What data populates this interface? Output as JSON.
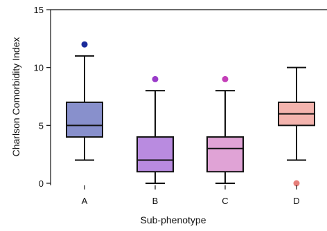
{
  "chart_data": {
    "type": "box",
    "xlabel": "Sub-phenotype",
    "ylabel": "Charlson Comorbidity Index",
    "ylim": [
      0,
      15
    ],
    "y_ticks": [
      0,
      5,
      10,
      15
    ],
    "grid": false,
    "categories": [
      "A",
      "B",
      "C",
      "D"
    ],
    "boxes": [
      {
        "category": "A",
        "whisker_low": 2,
        "q1": 4,
        "median": 5,
        "q3": 7,
        "whisker_high": 11,
        "outliers": [
          12
        ],
        "color": "#8890cc",
        "outlier_color": "#1a2a9a"
      },
      {
        "category": "B",
        "whisker_low": 0,
        "q1": 1,
        "median": 2,
        "q3": 4,
        "whisker_high": 8,
        "outliers": [
          9
        ],
        "color": "#b98be0",
        "outlier_color": "#9a3bc9"
      },
      {
        "category": "C",
        "whisker_low": 0,
        "q1": 1,
        "median": 3,
        "q3": 4,
        "whisker_high": 8,
        "outliers": [
          9
        ],
        "color": "#e0a3d6",
        "outlier_color": "#c43fb8"
      },
      {
        "category": "D",
        "whisker_low": 2,
        "q1": 5,
        "median": 6,
        "q3": 7,
        "whisker_high": 10,
        "outliers": [
          0
        ],
        "color": "#f4b4ae",
        "outlier_color": "#e67f7a"
      }
    ]
  }
}
